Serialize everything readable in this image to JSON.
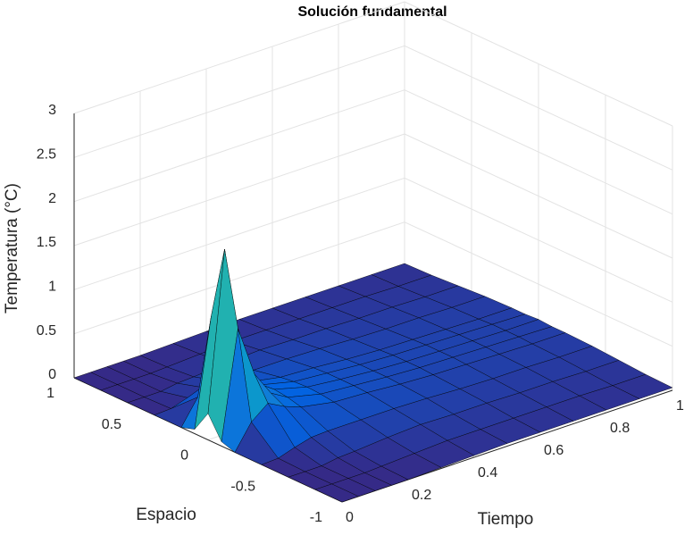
{
  "chart_data": {
    "type": "surface",
    "title": "Solución fundamental",
    "xlabel": "Tiempo",
    "ylabel": "Espacio",
    "zlabel": "Temperatura (°C)",
    "x": [
      0,
      0.05,
      0.1,
      0.15,
      0.2,
      0.3,
      0.4,
      0.5,
      0.6,
      0.7,
      0.8,
      0.9,
      1
    ],
    "y": [
      -1,
      -0.8,
      -0.6,
      -0.4,
      -0.2,
      -0.1,
      0,
      0.1,
      0.2,
      0.4,
      0.6,
      0.8,
      1
    ],
    "z": [
      [
        0,
        0,
        0,
        0,
        0,
        0.05,
        0.3,
        0.05,
        0,
        0,
        0,
        0,
        0
      ],
      [
        0,
        0,
        0,
        0.01,
        0.28,
        1.27,
        2.1,
        1.27,
        0.28,
        0.01,
        0,
        0,
        0
      ],
      [
        0,
        0,
        0,
        0.07,
        0.43,
        0.69,
        0.8,
        0.69,
        0.43,
        0.07,
        0,
        0,
        0
      ],
      [
        0,
        0,
        0.03,
        0.12,
        0.33,
        0.41,
        0.45,
        0.41,
        0.33,
        0.12,
        0.03,
        0,
        0
      ],
      [
        0,
        0.01,
        0.04,
        0.13,
        0.26,
        0.3,
        0.32,
        0.3,
        0.26,
        0.13,
        0.04,
        0.01,
        0
      ],
      [
        0.01,
        0.03,
        0.07,
        0.13,
        0.19,
        0.21,
        0.22,
        0.21,
        0.19,
        0.13,
        0.07,
        0.03,
        0.01
      ],
      [
        0.02,
        0.05,
        0.09,
        0.13,
        0.17,
        0.18,
        0.18,
        0.18,
        0.17,
        0.13,
        0.09,
        0.05,
        0.02
      ],
      [
        0.03,
        0.05,
        0.08,
        0.12,
        0.14,
        0.15,
        0.15,
        0.15,
        0.14,
        0.12,
        0.08,
        0.05,
        0.03
      ],
      [
        0.03,
        0.05,
        0.08,
        0.1,
        0.12,
        0.13,
        0.13,
        0.13,
        0.12,
        0.1,
        0.08,
        0.05,
        0.03
      ],
      [
        0.03,
        0.05,
        0.07,
        0.09,
        0.11,
        0.12,
        0.12,
        0.12,
        0.11,
        0.09,
        0.07,
        0.05,
        0.03
      ],
      [
        0.03,
        0.05,
        0.07,
        0.09,
        0.1,
        0.11,
        0.11,
        0.11,
        0.1,
        0.09,
        0.07,
        0.05,
        0.03
      ],
      [
        0.03,
        0.04,
        0.06,
        0.08,
        0.09,
        0.1,
        0.1,
        0.1,
        0.09,
        0.08,
        0.06,
        0.04,
        0.03
      ],
      [
        0.03,
        0.04,
        0.06,
        0.08,
        0.09,
        0.09,
        0.1,
        0.09,
        0.09,
        0.08,
        0.06,
        0.04,
        0.03
      ]
    ],
    "xlim": [
      0,
      1
    ],
    "ylim": [
      -1,
      1
    ],
    "zlim": [
      0,
      3
    ],
    "xticks": [
      0,
      0.2,
      0.4,
      0.6,
      0.8,
      1
    ],
    "yticks": [
      -1,
      -0.5,
      0,
      0.5,
      1
    ],
    "zticks": [
      0,
      0.5,
      1,
      1.5,
      2,
      2.5,
      3
    ],
    "grid": true,
    "colormap": [
      "#352a87",
      "#0363e1",
      "#1485d4",
      "#06a7c6",
      "#38b99e",
      "#92bf73",
      "#d9ba56",
      "#fcce2e",
      "#f9fb0e"
    ]
  }
}
